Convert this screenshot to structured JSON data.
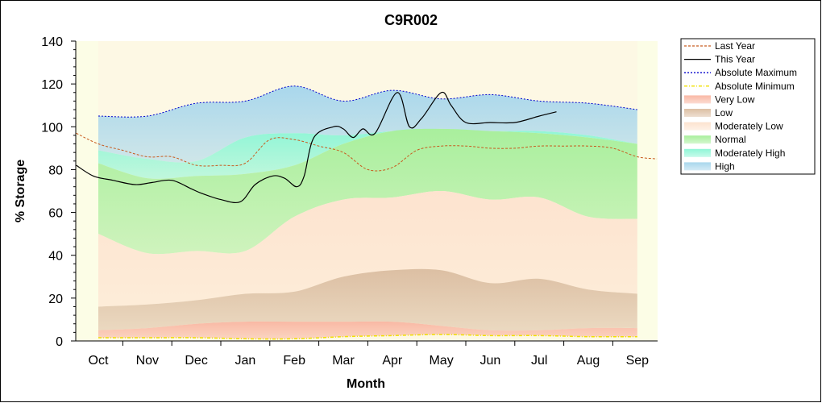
{
  "chart_data": {
    "type": "area",
    "title": "C9R002",
    "xlabel": "Month",
    "ylabel": "% Storage",
    "ylim": [
      0,
      140
    ],
    "yticks": [
      0,
      20,
      40,
      60,
      80,
      100,
      120,
      140
    ],
    "categories": [
      "Oct",
      "Nov",
      "Dec",
      "Jan",
      "Feb",
      "Mar",
      "Apr",
      "May",
      "Jun",
      "Jul",
      "Aug",
      "Sep"
    ],
    "grid": false,
    "legend_position": "right",
    "colors": {
      "plot_bg": "#fcfde6",
      "band_bg": "#fdf8e4",
      "very_low": "#f9b8a4",
      "low": "#dcbfa3",
      "moderately_low": "#fde3cf",
      "normal": "#a9ef9d",
      "moderately_high": "#8ff6d6",
      "high": "#a9d7ec",
      "last_year": "#c85a1e",
      "this_year": "#000000",
      "absolute_maximum": "#0000cc",
      "absolute_minimum": "#f0e000"
    },
    "band_boundaries": {
      "x": [
        0,
        1,
        2,
        3,
        4,
        5,
        6,
        7,
        8,
        9,
        10,
        11
      ],
      "abs_min": [
        1.5,
        1.5,
        1.5,
        1.0,
        1.0,
        2.0,
        2.5,
        3.0,
        2.5,
        2.5,
        2.0,
        2.0
      ],
      "very_low_top": [
        5,
        6,
        8,
        9,
        9,
        9,
        9,
        7,
        5,
        5,
        6,
        6
      ],
      "low_top": [
        16,
        17,
        19,
        22,
        23,
        30,
        33,
        33,
        27,
        29,
        24,
        22
      ],
      "moderately_low_top": [
        50,
        41,
        42,
        42,
        58,
        66,
        67,
        70,
        66,
        67,
        58,
        57
      ],
      "normal_top": [
        83,
        76,
        77,
        78,
        82,
        92,
        98,
        99,
        98,
        97,
        95,
        92
      ],
      "moderately_high_top": [
        89,
        85,
        84,
        95,
        97,
        96,
        98,
        99,
        98,
        98,
        96,
        92
      ],
      "abs_max": [
        105,
        105,
        111,
        112,
        119,
        112,
        117,
        113,
        115,
        112,
        111,
        108
      ]
    },
    "series": [
      {
        "name": "Last Year",
        "x": [
          -0.45,
          0,
          0.5,
          1,
          1.5,
          2,
          2.5,
          3,
          3.5,
          4,
          4.5,
          5,
          5.5,
          6,
          6.5,
          7,
          7.5,
          8,
          8.5,
          9,
          9.5,
          10,
          10.5,
          11,
          11.4
        ],
        "values": [
          97,
          92,
          89,
          86,
          86,
          82,
          82,
          83,
          94,
          94,
          91,
          88,
          80,
          81,
          89,
          91,
          91,
          90,
          90,
          91,
          91,
          91,
          90,
          86,
          85
        ]
      },
      {
        "name": "This Year",
        "x": [
          -0.45,
          -0.1,
          0.3,
          0.75,
          1.1,
          1.5,
          1.9,
          2.1,
          2.5,
          2.9,
          3.2,
          3.55,
          3.8,
          4.05,
          4.2,
          4.4,
          4.8,
          5.0,
          5.2,
          5.4,
          5.65,
          6.1,
          6.35,
          6.6,
          7.0,
          7.2,
          7.5,
          8.0,
          8.5,
          9.0,
          9.35
        ],
        "values": [
          82,
          77,
          75,
          73,
          74,
          75,
          71,
          69,
          66,
          65,
          73,
          77,
          76,
          72,
          77,
          95,
          100,
          99,
          95,
          99,
          97,
          116,
          100,
          104,
          116,
          110,
          102,
          102,
          102,
          105,
          107
        ]
      }
    ],
    "legend": [
      {
        "label": "Last Year",
        "kind": "line",
        "key": "last_year",
        "dash": "3 2"
      },
      {
        "label": "This Year",
        "kind": "line",
        "key": "this_year",
        "dash": ""
      },
      {
        "label": "Absolute Maximum",
        "kind": "line",
        "key": "absolute_maximum",
        "dash": "2 2"
      },
      {
        "label": "Absolute Minimum",
        "kind": "line",
        "key": "absolute_minimum",
        "dash": "4 2 1 2"
      },
      {
        "label": "Very Low",
        "kind": "swatch",
        "key": "very_low"
      },
      {
        "label": "Low",
        "kind": "swatch",
        "key": "low"
      },
      {
        "label": "Moderately Low",
        "kind": "swatch",
        "key": "moderately_low"
      },
      {
        "label": "Normal",
        "kind": "swatch",
        "key": "normal"
      },
      {
        "label": "Moderately High",
        "kind": "swatch",
        "key": "moderately_high"
      },
      {
        "label": "High",
        "kind": "swatch",
        "key": "high"
      }
    ]
  }
}
